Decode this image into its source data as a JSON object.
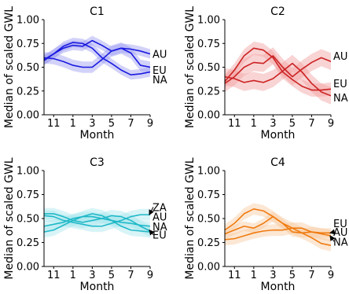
{
  "chart_data": [
    {
      "type": "line",
      "title": "C1",
      "xlabel": "Month",
      "ylabel": "Median of scaled GWL",
      "ylim": [
        0,
        1
      ],
      "xlim": [
        10,
        21
      ],
      "x_ticks": [
        11,
        13,
        15,
        17,
        19,
        21
      ],
      "x_tick_labels": [
        "11",
        "1",
        "3",
        "5",
        "7",
        "9"
      ],
      "y_ticks": [
        0,
        0.25,
        0.5,
        0.75,
        1
      ],
      "y_tick_labels": [
        "0.00",
        "0.25",
        "0.50",
        "0.75",
        "1.00"
      ],
      "grid": false,
      "color": "#1a1ae0",
      "band_color": "#9c9cf2",
      "x": [
        10,
        11,
        12,
        13,
        14,
        15,
        16,
        17,
        18,
        19,
        20,
        21
      ],
      "series": [
        {
          "name": "AU",
          "values": [
            0.58,
            0.64,
            0.7,
            0.73,
            0.72,
            0.78,
            0.73,
            0.67,
            0.7,
            0.69,
            0.67,
            0.64
          ],
          "band": 0.05,
          "label_value": 0.64
        },
        {
          "name": "EU",
          "values": [
            0.57,
            0.64,
            0.72,
            0.76,
            0.75,
            0.7,
            0.6,
            0.54,
            0.47,
            0.42,
            0.43,
            0.45
          ],
          "band": 0.05,
          "label_value": 0.47
        },
        {
          "name": "NA",
          "values": [
            0.6,
            0.59,
            0.56,
            0.52,
            0.5,
            0.5,
            0.58,
            0.67,
            0.7,
            0.65,
            0.52,
            0.5
          ],
          "band": 0.06,
          "label_value": 0.37
        }
      ]
    },
    {
      "type": "line",
      "title": "C2",
      "xlabel": "Month",
      "ylabel": "Median of scaled GWL",
      "ylim": [
        0,
        1
      ],
      "xlim": [
        10,
        21
      ],
      "x_ticks": [
        11,
        13,
        15,
        17,
        19,
        21
      ],
      "x_tick_labels": [
        "11",
        "1",
        "3",
        "5",
        "7",
        "9"
      ],
      "y_ticks": [
        0,
        0.25,
        0.5,
        0.75,
        1
      ],
      "y_tick_labels": [
        "0.00",
        "0.25",
        "0.50",
        "0.75",
        "1.00"
      ],
      "grid": false,
      "color": "#cc2222",
      "band_color": "#f2a0a0",
      "x": [
        10,
        11,
        12,
        13,
        14,
        15,
        16,
        17,
        18,
        19,
        20,
        21
      ],
      "series": [
        {
          "name": "AU",
          "values": [
            0.33,
            0.4,
            0.5,
            0.55,
            0.54,
            0.62,
            0.5,
            0.4,
            0.48,
            0.55,
            0.6,
            0.56
          ],
          "band": 0.09,
          "label_value": 0.62
        },
        {
          "name": "EU",
          "values": [
            0.35,
            0.47,
            0.62,
            0.7,
            0.68,
            0.6,
            0.45,
            0.37,
            0.3,
            0.26,
            0.26,
            0.27
          ],
          "band": 0.07,
          "label_value": 0.33
        },
        {
          "name": "NA",
          "values": [
            0.4,
            0.38,
            0.34,
            0.36,
            0.34,
            0.38,
            0.46,
            0.54,
            0.45,
            0.33,
            0.24,
            0.2
          ],
          "band": 0.09,
          "label_value": 0.18
        }
      ]
    },
    {
      "type": "line",
      "title": "C3",
      "xlabel": "Month",
      "ylabel": "Median of scaled GWL",
      "ylim": [
        0,
        1
      ],
      "xlim": [
        10,
        21
      ],
      "x_ticks": [
        11,
        13,
        15,
        17,
        19,
        21
      ],
      "x_tick_labels": [
        "11",
        "1",
        "3",
        "5",
        "7",
        "9"
      ],
      "y_ticks": [
        0,
        0.25,
        0.5,
        0.75,
        1
      ],
      "y_tick_labels": [
        "0.00",
        "0.25",
        "0.50",
        "0.75",
        "1.00"
      ],
      "grid": false,
      "color": "#1fb8c8",
      "band_color": "#a8e6ee",
      "x": [
        10,
        11,
        12,
        13,
        14,
        15,
        16,
        17,
        18,
        19,
        20,
        21
      ],
      "series": [
        {
          "name": "ZA",
          "values": [
            0.53,
            0.52,
            0.48,
            0.46,
            0.44,
            0.42,
            0.42,
            0.45,
            0.48,
            0.52,
            0.54,
            0.54
          ],
          "band": 0.06,
          "label_value": 0.62,
          "arrow_to": 0.54
        },
        {
          "name": "AU",
          "values": [
            0.36,
            0.38,
            0.43,
            0.48,
            0.52,
            0.55,
            0.53,
            0.48,
            0.42,
            0.38,
            0.37,
            0.36
          ],
          "band": 0.06,
          "label_value": 0.52
        },
        {
          "name": "NA",
          "values": [
            0.42,
            0.44,
            0.46,
            0.5,
            0.52,
            0.52,
            0.5,
            0.48,
            0.46,
            0.45,
            0.43,
            0.42
          ],
          "band": 0.05,
          "label_value": 0.42
        },
        {
          "name": "EU",
          "values": [
            0.55,
            0.55,
            0.52,
            0.48,
            0.46,
            0.48,
            0.5,
            0.53,
            0.52,
            0.48,
            0.42,
            0.37
          ],
          "band": 0.06,
          "label_value": 0.33,
          "arrow_to": 0.38
        }
      ]
    },
    {
      "type": "line",
      "title": "C4",
      "xlabel": "Month",
      "ylabel": "Median of scaled GWL",
      "ylim": [
        0,
        1
      ],
      "xlim": [
        10,
        21
      ],
      "x_ticks": [
        11,
        13,
        15,
        17,
        19,
        21
      ],
      "x_tick_labels": [
        "11",
        "1",
        "3",
        "5",
        "7",
        "9"
      ],
      "y_ticks": [
        0,
        0.25,
        0.5,
        0.75,
        1
      ],
      "y_tick_labels": [
        "0.00",
        "0.25",
        "0.50",
        "0.75",
        "1.00"
      ],
      "grid": false,
      "color": "#f07b10",
      "band_color": "#f8c9a0",
      "x": [
        10,
        11,
        12,
        13,
        14,
        15,
        16,
        17,
        18,
        19,
        20,
        21
      ],
      "series": [
        {
          "name": "EU",
          "values": [
            0.38,
            0.45,
            0.55,
            0.6,
            0.58,
            0.52,
            0.45,
            0.4,
            0.35,
            0.3,
            0.24,
            0.22
          ],
          "band": 0.06,
          "label_value": 0.45
        },
        {
          "name": "AU",
          "values": [
            0.34,
            0.38,
            0.42,
            0.4,
            0.45,
            0.52,
            0.45,
            0.36,
            0.35,
            0.36,
            0.35,
            0.35
          ],
          "band": 0.05,
          "label_value": 0.36,
          "arrow_to": 0.35
        },
        {
          "name": "NA",
          "values": [
            0.28,
            0.29,
            0.32,
            0.35,
            0.37,
            0.38,
            0.38,
            0.4,
            0.4,
            0.36,
            0.34,
            0.32
          ],
          "band": 0.06,
          "label_value": 0.26,
          "arrow_to": 0.32
        }
      ]
    }
  ]
}
